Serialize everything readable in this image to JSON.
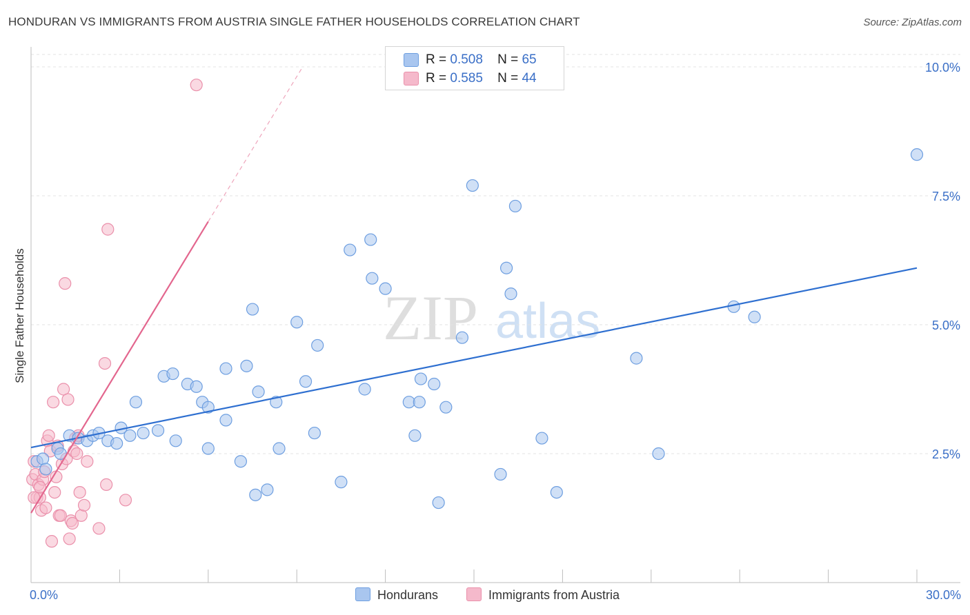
{
  "title": "HONDURAN VS IMMIGRANTS FROM AUSTRIA SINGLE FATHER HOUSEHOLDS CORRELATION CHART",
  "source": "Source: ZipAtlas.com",
  "watermark": {
    "zip": "ZIP",
    "atlas": "atlas"
  },
  "legend": {
    "r_label": "R =",
    "n_label": "N =",
    "rows": [
      {
        "r": "0.508",
        "n": "65"
      },
      {
        "r": "0.585",
        "n": "44"
      }
    ]
  },
  "colors": {
    "blue_fill": "#a9c6ef",
    "blue_stroke": "#6d9ee0",
    "blue_line": "#2e6fd0",
    "pink_fill": "#f5b9cb",
    "pink_stroke": "#ea8faa",
    "pink_line": "#e3668e",
    "axis_text": "#3a6fc7"
  },
  "chart_data": {
    "type": "scatter",
    "title": "HONDURAN VS IMMIGRANTS FROM AUSTRIA SINGLE FATHER HOUSEHOLDS CORRELATION CHART",
    "xlabel": "",
    "ylabel": "Single Father Households",
    "xlim": [
      0,
      30
    ],
    "ylim": [
      0,
      10.2
    ],
    "x_tick_labels": [
      "0.0%",
      "30.0%"
    ],
    "y_ticks": [
      2.5,
      5.0,
      7.5,
      10.0
    ],
    "y_tick_labels": [
      "2.5%",
      "5.0%",
      "7.5%",
      "10.0%"
    ],
    "grid": true,
    "legend_position": "top-center",
    "series": [
      {
        "name": "Hondurans",
        "color": "#a9c6ef",
        "points": [
          [
            0.2,
            2.35
          ],
          [
            0.4,
            2.4
          ],
          [
            0.5,
            2.2
          ],
          [
            0.9,
            2.6
          ],
          [
            1.0,
            2.5
          ],
          [
            1.3,
            2.85
          ],
          [
            1.6,
            2.8
          ],
          [
            1.9,
            2.75
          ],
          [
            2.1,
            2.85
          ],
          [
            2.3,
            2.9
          ],
          [
            2.6,
            2.75
          ],
          [
            2.9,
            2.7
          ],
          [
            3.05,
            3.0
          ],
          [
            3.35,
            2.85
          ],
          [
            3.55,
            3.5
          ],
          [
            3.8,
            2.9
          ],
          [
            4.3,
            2.95
          ],
          [
            4.5,
            4.0
          ],
          [
            4.8,
            4.05
          ],
          [
            4.9,
            2.75
          ],
          [
            5.3,
            3.85
          ],
          [
            5.6,
            3.8
          ],
          [
            5.8,
            3.5
          ],
          [
            6.0,
            3.4
          ],
          [
            6.0,
            2.6
          ],
          [
            6.6,
            3.15
          ],
          [
            6.6,
            4.15
          ],
          [
            7.1,
            2.35
          ],
          [
            7.3,
            4.2
          ],
          [
            7.5,
            5.3
          ],
          [
            7.6,
            1.7
          ],
          [
            7.7,
            3.7
          ],
          [
            8.0,
            1.8
          ],
          [
            8.3,
            3.5
          ],
          [
            8.4,
            2.6
          ],
          [
            9.0,
            5.05
          ],
          [
            9.3,
            3.9
          ],
          [
            9.6,
            2.9
          ],
          [
            9.7,
            4.6
          ],
          [
            10.5,
            1.95
          ],
          [
            10.8,
            6.45
          ],
          [
            11.3,
            3.75
          ],
          [
            11.5,
            6.65
          ],
          [
            11.55,
            5.9
          ],
          [
            12.0,
            5.7
          ],
          [
            12.8,
            3.5
          ],
          [
            13.0,
            2.85
          ],
          [
            13.15,
            3.5
          ],
          [
            13.2,
            3.95
          ],
          [
            13.65,
            3.85
          ],
          [
            13.8,
            1.55
          ],
          [
            14.05,
            3.4
          ],
          [
            14.6,
            4.75
          ],
          [
            14.95,
            7.7
          ],
          [
            15.9,
            2.1
          ],
          [
            16.1,
            6.1
          ],
          [
            16.25,
            5.6
          ],
          [
            16.4,
            7.3
          ],
          [
            17.3,
            2.8
          ],
          [
            17.8,
            1.75
          ],
          [
            20.5,
            4.35
          ],
          [
            21.25,
            2.5
          ],
          [
            23.8,
            5.35
          ],
          [
            24.5,
            5.15
          ],
          [
            30.0,
            8.3
          ]
        ]
      },
      {
        "name": "Immigrants from Austria",
        "color": "#f5b9cb",
        "points": [
          [
            0.05,
            2.0
          ],
          [
            0.1,
            2.35
          ],
          [
            0.15,
            2.1
          ],
          [
            0.2,
            1.65
          ],
          [
            0.25,
            1.9
          ],
          [
            0.3,
            1.65
          ],
          [
            0.35,
            1.4
          ],
          [
            0.4,
            2.0
          ],
          [
            0.45,
            2.15
          ],
          [
            0.5,
            1.45
          ],
          [
            0.55,
            2.75
          ],
          [
            0.6,
            2.85
          ],
          [
            0.65,
            2.55
          ],
          [
            0.7,
            0.8
          ],
          [
            0.75,
            3.5
          ],
          [
            0.8,
            1.75
          ],
          [
            0.85,
            2.05
          ],
          [
            0.9,
            2.65
          ],
          [
            0.95,
            1.3
          ],
          [
            1.0,
            1.3
          ],
          [
            1.05,
            2.3
          ],
          [
            1.1,
            3.75
          ],
          [
            1.15,
            5.8
          ],
          [
            1.2,
            2.4
          ],
          [
            1.25,
            3.55
          ],
          [
            1.3,
            0.85
          ],
          [
            1.35,
            1.2
          ],
          [
            1.4,
            1.15
          ],
          [
            1.45,
            2.55
          ],
          [
            1.5,
            2.8
          ],
          [
            1.55,
            2.5
          ],
          [
            1.6,
            2.85
          ],
          [
            1.65,
            1.75
          ],
          [
            1.7,
            1.3
          ],
          [
            1.8,
            1.5
          ],
          [
            1.9,
            2.35
          ],
          [
            2.3,
            1.05
          ],
          [
            2.5,
            4.25
          ],
          [
            2.55,
            1.9
          ],
          [
            2.6,
            6.85
          ],
          [
            3.2,
            1.6
          ],
          [
            5.6,
            9.65
          ],
          [
            0.1,
            1.65
          ],
          [
            0.3,
            1.85
          ]
        ]
      }
    ],
    "trend_lines": [
      {
        "series": "Hondurans",
        "x0": 0,
        "y0": 2.62,
        "x1": 30,
        "y1": 6.1
      },
      {
        "series": "Immigrants from Austria",
        "x0": 0,
        "y0": 1.35,
        "x1": 6.0,
        "y1": 7.0,
        "dashed_to": [
          9.2,
          10.0
        ]
      }
    ]
  }
}
